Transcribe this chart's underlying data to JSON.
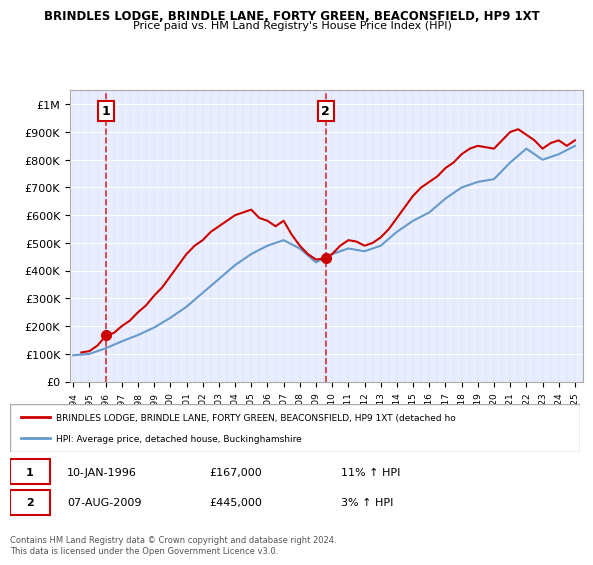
{
  "title": "BRINDLES LODGE, BRINDLE LANE, FORTY GREEN, BEACONSFIELD, HP9 1XT",
  "subtitle": "Price paid vs. HM Land Registry's House Price Index (HPI)",
  "legend_line1": "BRINDLES LODGE, BRINDLE LANE, FORTY GREEN, BEACONSFIELD, HP9 1XT (detached ho",
  "legend_line2": "HPI: Average price, detached house, Buckinghamshire",
  "footnote": "Contains HM Land Registry data © Crown copyright and database right 2024.\nThis data is licensed under the Open Government Licence v3.0.",
  "point1_label": "1",
  "point1_date": "10-JAN-1996",
  "point1_price": "£167,000",
  "point1_hpi": "11% ↑ HPI",
  "point2_label": "2",
  "point2_date": "07-AUG-2009",
  "point2_price": "£445,000",
  "point2_hpi": "3% ↑ HPI",
  "sale1_year": 1996.04,
  "sale1_value": 167000,
  "sale2_year": 2009.6,
  "sale2_value": 445000,
  "hpi_color": "#6699cc",
  "price_color": "#cc0000",
  "bg_hatch_color": "#ddeeff",
  "annotation_box_color": "#cc0000",
  "ylim_min": 0,
  "ylim_max": 1050000,
  "hpi_years": [
    1994,
    1995,
    1996,
    1997,
    1998,
    1999,
    2000,
    2001,
    2002,
    2003,
    2004,
    2005,
    2006,
    2007,
    2008,
    2009,
    2010,
    2011,
    2012,
    2013,
    2014,
    2015,
    2016,
    2017,
    2018,
    2019,
    2020,
    2021,
    2022,
    2023,
    2024,
    2025
  ],
  "hpi_values": [
    95000,
    100000,
    120000,
    145000,
    168000,
    195000,
    230000,
    270000,
    320000,
    370000,
    420000,
    460000,
    490000,
    510000,
    480000,
    430000,
    460000,
    480000,
    470000,
    490000,
    540000,
    580000,
    610000,
    660000,
    700000,
    720000,
    730000,
    790000,
    840000,
    800000,
    820000,
    850000
  ],
  "price_years": [
    1994.5,
    1995.0,
    1995.5,
    1996.04,
    1996.5,
    1997.0,
    1997.5,
    1998.0,
    1998.5,
    1999.0,
    1999.5,
    2000.0,
    2000.5,
    2001.0,
    2001.5,
    2002.0,
    2002.5,
    2003.0,
    2003.5,
    2004.0,
    2004.5,
    2005.0,
    2005.5,
    2006.0,
    2006.5,
    2007.0,
    2007.5,
    2008.0,
    2008.5,
    2009.0,
    2009.6,
    2010.0,
    2010.5,
    2011.0,
    2011.5,
    2012.0,
    2012.5,
    2013.0,
    2013.5,
    2014.0,
    2014.5,
    2015.0,
    2015.5,
    2016.0,
    2016.5,
    2017.0,
    2017.5,
    2018.0,
    2018.5,
    2019.0,
    2019.5,
    2020.0,
    2020.5,
    2021.0,
    2021.5,
    2022.0,
    2022.5,
    2023.0,
    2023.5,
    2024.0,
    2024.5,
    2025.0
  ],
  "price_values": [
    105000,
    110000,
    130000,
    167000,
    175000,
    200000,
    220000,
    250000,
    275000,
    310000,
    340000,
    380000,
    420000,
    460000,
    490000,
    510000,
    540000,
    560000,
    580000,
    600000,
    610000,
    620000,
    590000,
    580000,
    560000,
    580000,
    530000,
    490000,
    460000,
    440000,
    445000,
    460000,
    490000,
    510000,
    505000,
    490000,
    500000,
    520000,
    550000,
    590000,
    630000,
    670000,
    700000,
    720000,
    740000,
    770000,
    790000,
    820000,
    840000,
    850000,
    845000,
    840000,
    870000,
    900000,
    910000,
    890000,
    870000,
    840000,
    860000,
    870000,
    850000,
    870000
  ]
}
